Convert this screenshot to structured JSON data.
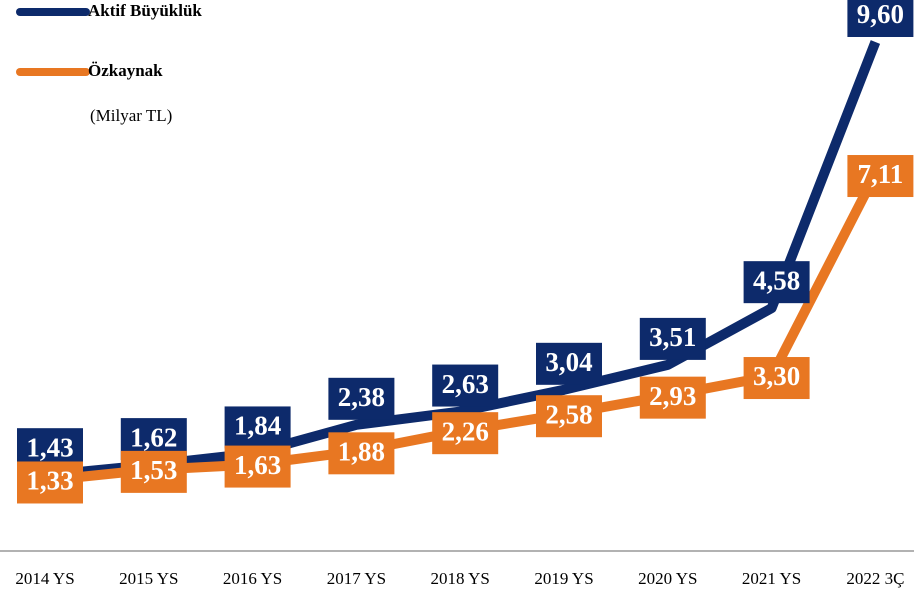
{
  "chart_data": {
    "type": "line",
    "subtitle": "(Milyar TL)",
    "categories": [
      "2014 YS",
      "2015 YS",
      "2016 YS",
      "2017 YS",
      "2018 YS",
      "2019 YS",
      "2020 YS",
      "2021 YS",
      "2022 3Ç"
    ],
    "series": [
      {
        "name": "Aktif Büyüklük",
        "color": "#0d2a6b",
        "values": [
          1.43,
          1.62,
          1.84,
          2.38,
          2.63,
          3.04,
          3.51,
          4.58,
          9.6
        ],
        "value_labels": [
          "1,43",
          "1,62",
          "1,84",
          "2,38",
          "2,63",
          "3,04",
          "3,51",
          "4,58",
          "9,60"
        ]
      },
      {
        "name": "Özkaynak",
        "color": "#e87722",
        "values": [
          1.33,
          1.53,
          1.63,
          1.88,
          2.26,
          2.58,
          2.93,
          3.3,
          7.11
        ],
        "value_labels": [
          "1,33",
          "1,53",
          "1,63",
          "1,88",
          "2,26",
          "2,58",
          "2,93",
          "3,30",
          "7,11"
        ]
      }
    ]
  }
}
